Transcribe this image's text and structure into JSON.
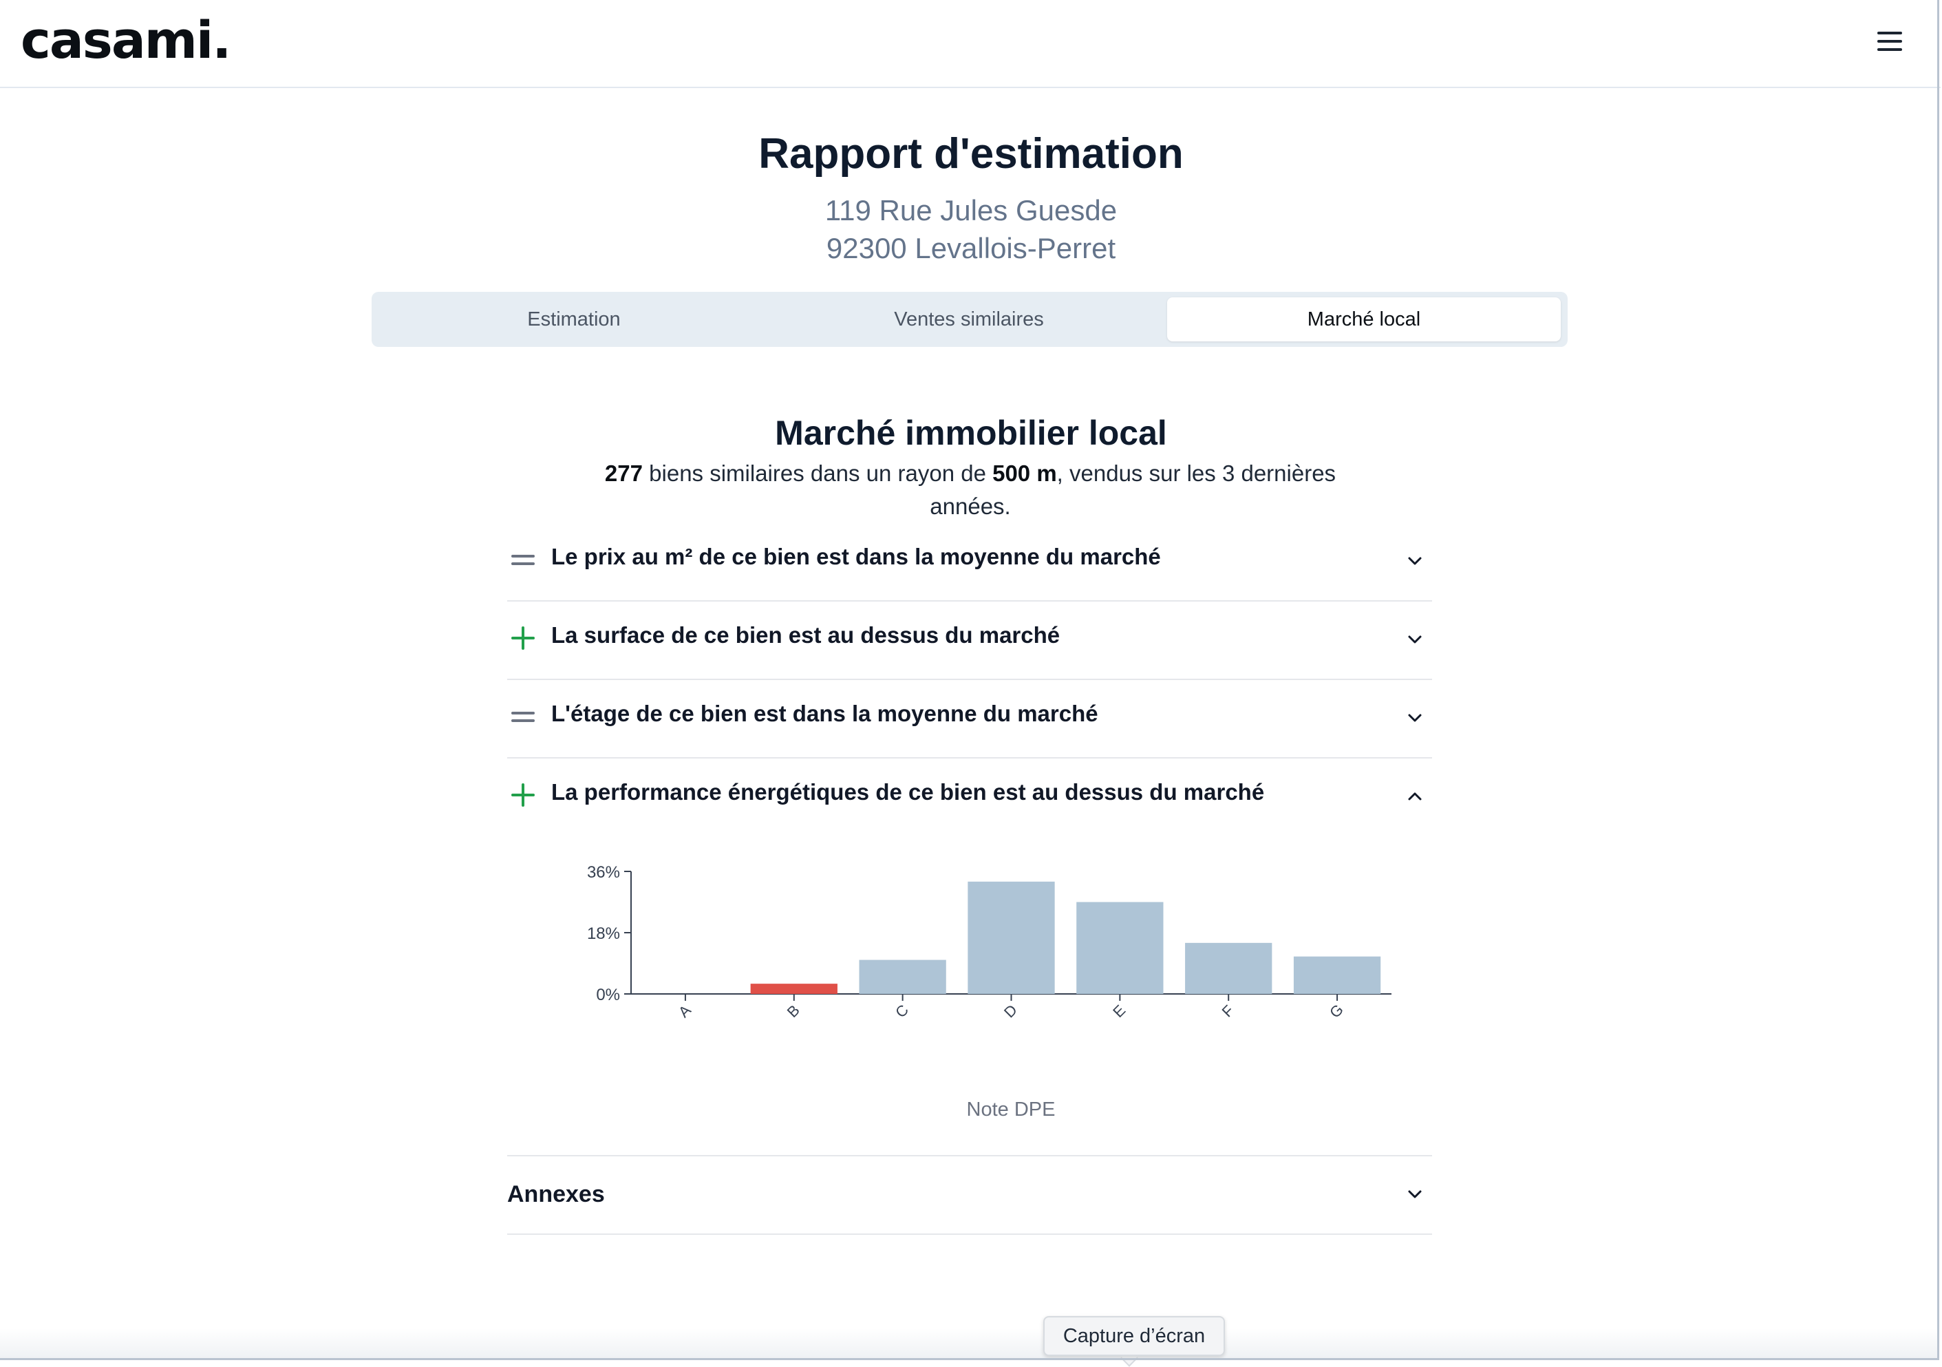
{
  "header": {
    "logo": "casami.",
    "menu_icon": "hamburger-menu-icon"
  },
  "report": {
    "title": "Rapport d'estimation",
    "address_line1": "119 Rue Jules Guesde",
    "address_line2": "92300 Levallois-Perret"
  },
  "tabs": [
    {
      "label": "Estimation",
      "active": false
    },
    {
      "label": "Ventes similaires",
      "active": false
    },
    {
      "label": "Marché local",
      "active": true
    }
  ],
  "market": {
    "title": "Marché immobilier local",
    "count": "277",
    "sub_text1": " biens similaires dans un rayon de ",
    "radius": "500 m",
    "sub_text2": ", vendus sur les 3 dernières années."
  },
  "accordion": [
    {
      "icon": "equal-icon",
      "label": "Le prix au m² de ce bien est dans la moyenne du marché",
      "expanded": false
    },
    {
      "icon": "plus-icon",
      "label": "La surface de ce bien est au dessus du marché",
      "expanded": false
    },
    {
      "icon": "equal-icon",
      "label": "L'étage de ce bien est dans la moyenne du marché",
      "expanded": false
    },
    {
      "icon": "plus-icon",
      "label": "La performance énergétiques de ce bien est au dessus du marché",
      "expanded": true
    }
  ],
  "chart_data": {
    "type": "bar",
    "categories": [
      "A",
      "B",
      "C",
      "D",
      "E",
      "F",
      "G"
    ],
    "values": [
      0,
      3,
      10,
      33,
      27,
      15,
      11
    ],
    "highlight_category": "B",
    "colors": {
      "bar": "#aec4d6",
      "highlight": "#e05048",
      "axis": "#374151"
    },
    "yticks": [
      "0%",
      "18%",
      "36%"
    ],
    "ylim": [
      0,
      36
    ],
    "xlabel": "Note DPE",
    "ylabel": "",
    "grid": false
  },
  "annexes": {
    "label": "Annexes",
    "expanded": false
  },
  "tooltip": {
    "text": "Capture d’écran"
  }
}
